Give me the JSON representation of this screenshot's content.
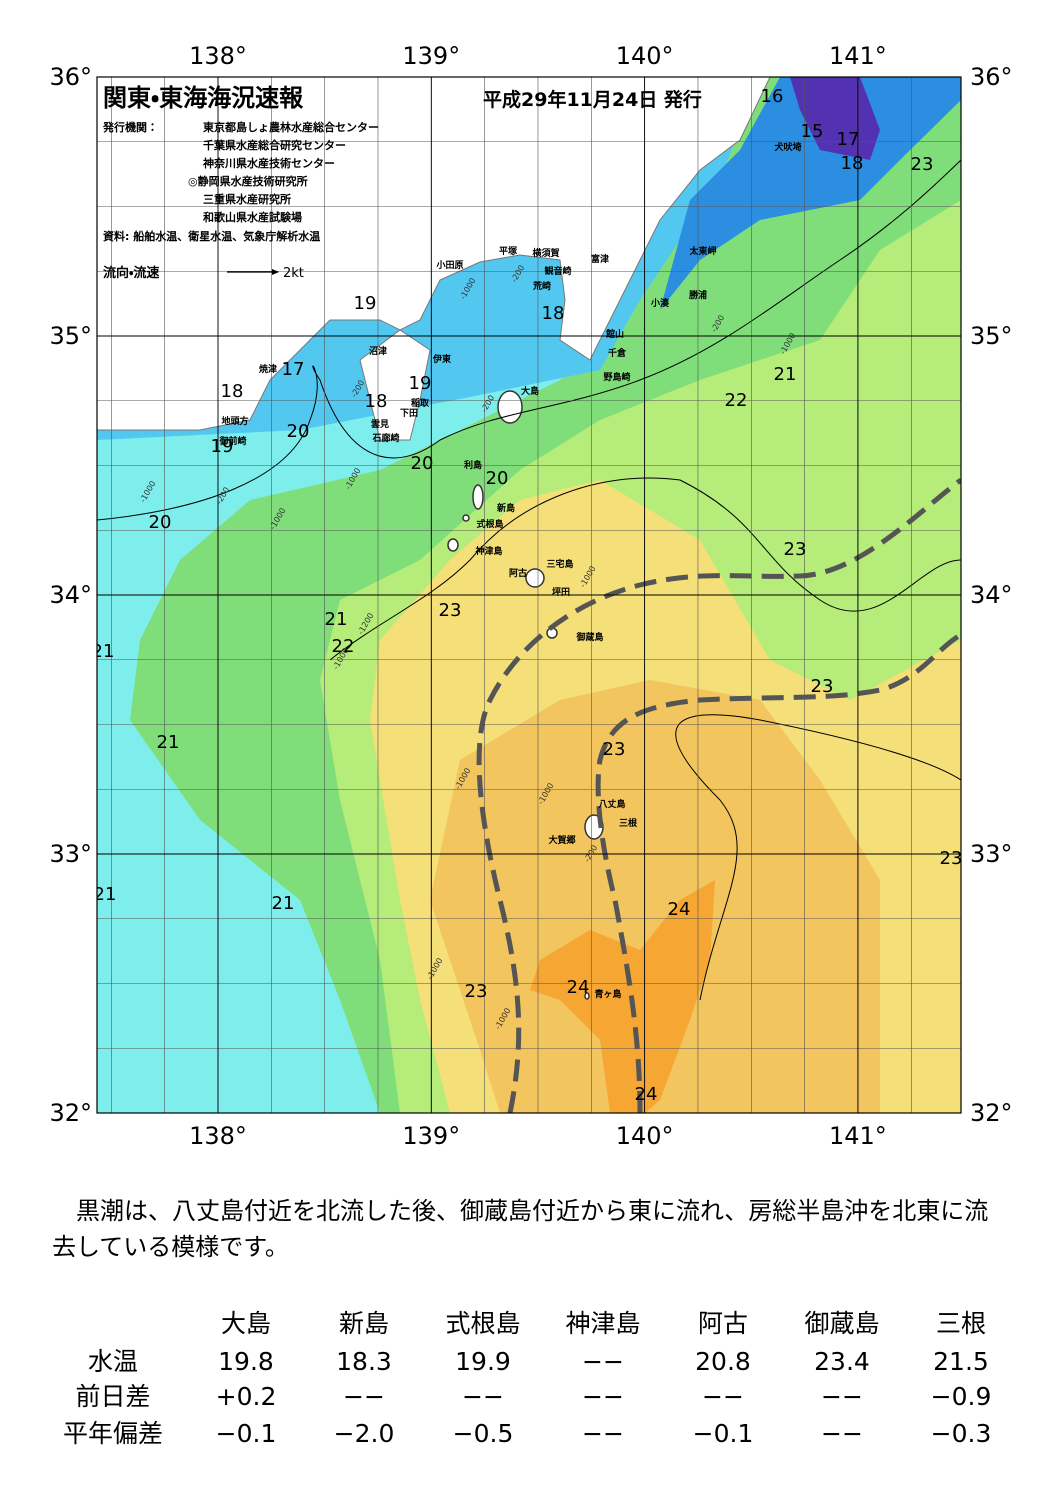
{
  "header": {
    "title": "関東・東海海況速報",
    "date": "平成29年11月24日 発行",
    "publisher_label": "発行機関：",
    "publishers": [
      "東京都島しょ農林水産総合センター",
      "千葉県水産総合研究センター",
      "神奈川県水産技術センター",
      "◎静岡県水産技術研究所",
      "三重県水産研究所",
      "和歌山県水産試験場"
    ],
    "sources": "資料: 船舶水温、衛星水温、気象庁解析水温",
    "legend_label": "流向・流速",
    "legend_scale": "2kt"
  },
  "map": {
    "lon_ticks": [
      {
        "value": 138,
        "label": "138°"
      },
      {
        "value": 139,
        "label": "139°"
      },
      {
        "value": 140,
        "label": "140°"
      },
      {
        "value": 141,
        "label": "141°"
      }
    ],
    "lat_ticks": [
      {
        "value": 36,
        "label": "36°"
      },
      {
        "value": 35,
        "label": "35°"
      },
      {
        "value": 34,
        "label": "34°"
      },
      {
        "value": 33,
        "label": "33°"
      },
      {
        "value": 32,
        "label": "32°"
      }
    ],
    "isotherm_labels": [
      16,
      15,
      17,
      18,
      23,
      19,
      17,
      18,
      18,
      19,
      20,
      19,
      20,
      20,
      20,
      22,
      21,
      23,
      23,
      21,
      22,
      21,
      23,
      21,
      23,
      21,
      21,
      24,
      23,
      23,
      24,
      24,
      18
    ],
    "depth_labels": [
      -1000,
      -200,
      -200,
      -200,
      -1000,
      -200,
      -1000,
      -1000,
      -1000,
      -1200,
      -1000,
      -1000,
      -1000,
      -200,
      -1000,
      -1000,
      -200,
      -1000
    ],
    "place_names": [
      "犬吠埼",
      "太東岬",
      "勝浦",
      "小湊",
      "富津",
      "館山",
      "千倉",
      "野島崎",
      "小田原",
      "平塚",
      "横須賀",
      "観音崎",
      "荒崎",
      "沼津",
      "伊東",
      "稲取",
      "下田",
      "雲見",
      "石廊崎",
      "焼津",
      "地頭方",
      "御前崎",
      "大島",
      "利島",
      "新島",
      "式根島",
      "神津島",
      "三宅島",
      "阿古",
      "坪田",
      "御蔵島",
      "八丈島",
      "三根",
      "大賀郷",
      "青ヶ島"
    ]
  },
  "summary": "　黒潮は、八丈島付近を北流した後、御蔵島付近から東に流れ、房総半島沖を北東に流去している模様です。",
  "table": {
    "columns": [
      "大島",
      "新島",
      "式根島",
      "神津島",
      "阿古",
      "御蔵島",
      "三根"
    ],
    "rows": [
      {
        "label": "水温",
        "cells": [
          "19.8",
          "18.3",
          "19.9",
          "−−",
          "20.8",
          "23.4",
          "21.5"
        ]
      },
      {
        "label": "前日差",
        "cells": [
          "+0.2",
          "−−",
          "−−",
          "−−",
          "−−",
          "−−",
          "−0.9"
        ]
      },
      {
        "label": "平年偏差",
        "cells": [
          "−0.1",
          "−2.0",
          "−0.5",
          "−−",
          "−0.1",
          "−−",
          "−0.3"
        ]
      }
    ]
  }
}
